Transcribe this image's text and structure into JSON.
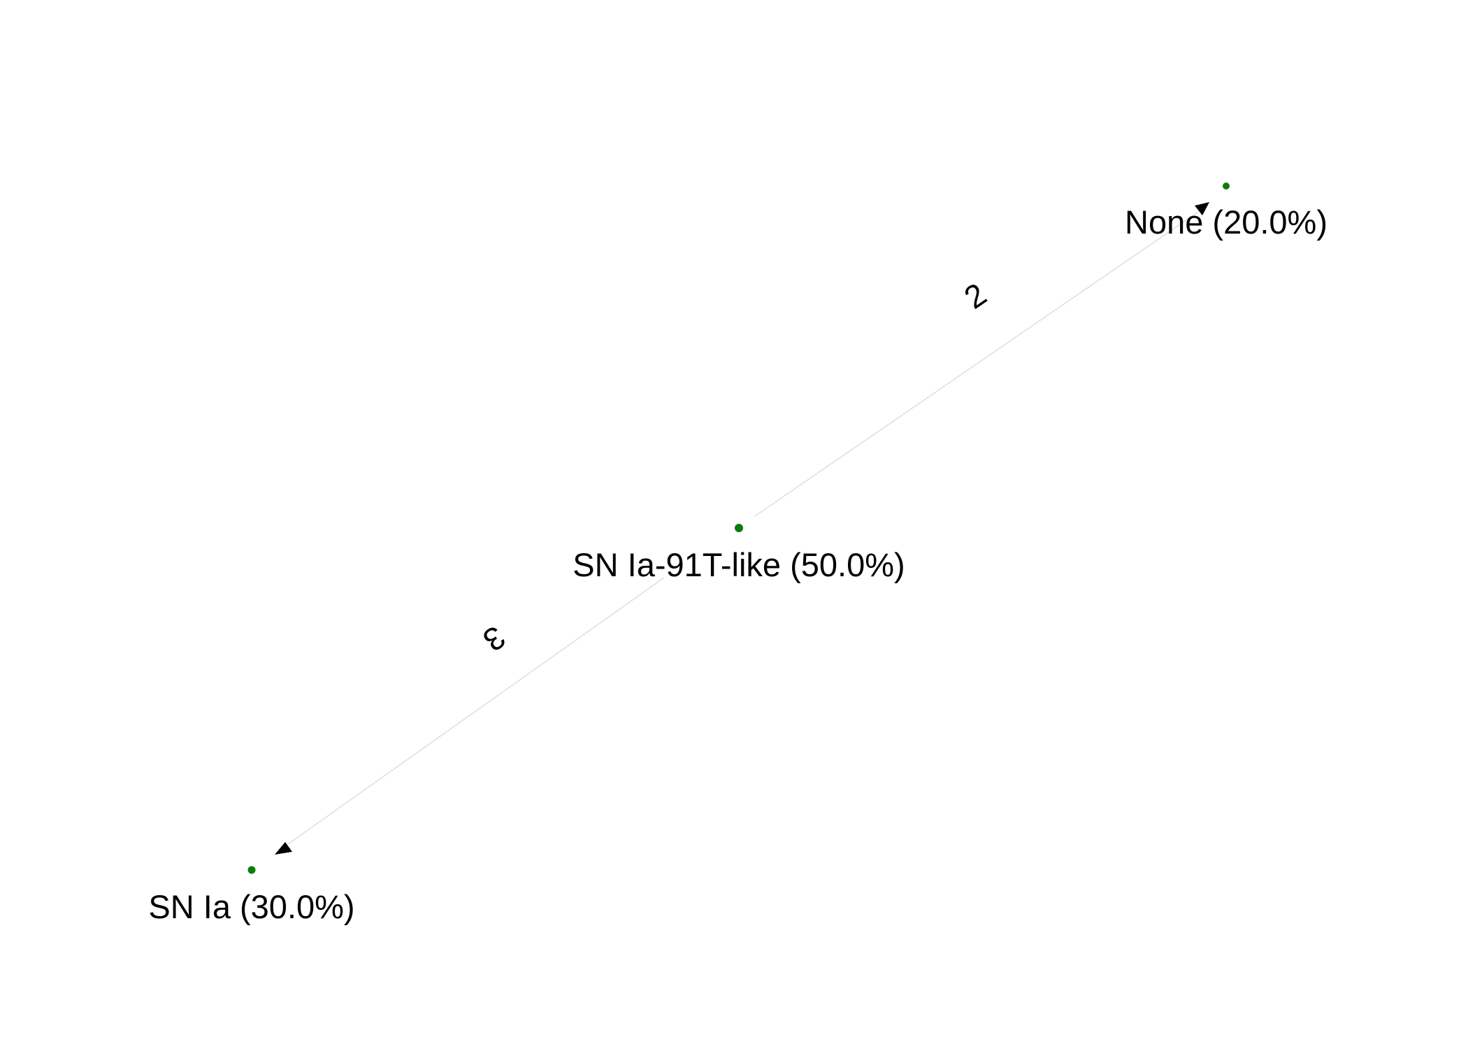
{
  "nodes": [
    {
      "id": "none",
      "label": "None (20.0%)",
      "color": "#0a7d0a"
    },
    {
      "id": "sn_ia_91t",
      "label": "SN Ia-91T-like (50.0%)",
      "color": "#0a7d0a"
    },
    {
      "id": "sn_ia",
      "label": "SN Ia (30.0%)",
      "color": "#0a7d0a"
    }
  ],
  "edges": [
    {
      "from": "sn_ia_91t",
      "to": "none",
      "label": "2"
    },
    {
      "from": "sn_ia_91t",
      "to": "sn_ia",
      "label": "3"
    }
  ],
  "colors": {
    "node": "#0a7d0a",
    "edge": "#e0e0e0",
    "arrow": "#000000",
    "text": "#000000",
    "background": "#ffffff"
  }
}
